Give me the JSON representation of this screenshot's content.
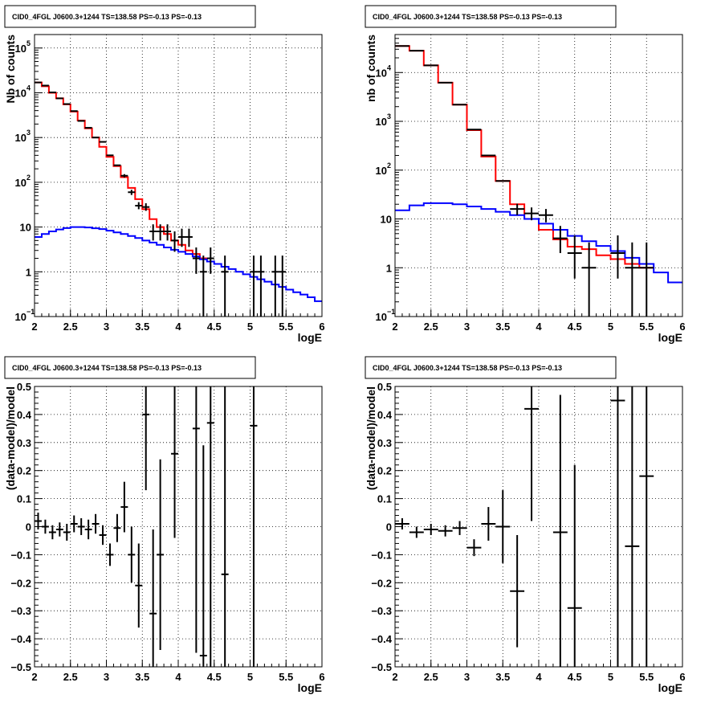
{
  "colors": {
    "data": "#000000",
    "model_total": "#ff0000",
    "model_component": "#0000ff",
    "grid": "#000000"
  },
  "chart_data": [
    {
      "type": "step",
      "title": "CID0_4FGL J0600.3+1244 TS=138.58 PS=-0.13 PS=-0.13",
      "xlabel": "logE",
      "ylabel": "Nb of counts",
      "xlim": [
        2,
        6
      ],
      "ylim": [
        0.1,
        200000
      ],
      "yscale": "log",
      "grid": true,
      "xticks": [
        "2",
        "2.5",
        "3",
        "3.5",
        "4",
        "4.5",
        "5",
        "5.5",
        "6"
      ],
      "yticks": [
        {
          "v": 0.1,
          "base": "10",
          "exp": "−1"
        },
        {
          "v": 1,
          "base": "1",
          "exp": ""
        },
        {
          "v": 10,
          "base": "10",
          "exp": ""
        },
        {
          "v": 100,
          "base": "10",
          "exp": "2"
        },
        {
          "v": 1000,
          "base": "10",
          "exp": "3"
        },
        {
          "v": 10000,
          "base": "10",
          "exp": "4"
        },
        {
          "v": 100000,
          "base": "10",
          "exp": "5"
        }
      ],
      "series": [
        {
          "role": "model_total",
          "x_edges": [
            2.0,
            2.1,
            2.2,
            2.3,
            2.4,
            2.5,
            2.6,
            2.7,
            2.8,
            2.9,
            3.0,
            3.1,
            3.2,
            3.3,
            3.4,
            3.5,
            3.6,
            3.7,
            3.8,
            3.9,
            4.0,
            4.1,
            4.2,
            4.3,
            4.4
          ],
          "values": [
            17000,
            14000,
            10000,
            7500,
            5500,
            3800,
            2400,
            1600,
            1000,
            620,
            370,
            230,
            130,
            75,
            42,
            25,
            15,
            10,
            7,
            5,
            4,
            3,
            2.5,
            2
          ]
        },
        {
          "role": "model_component",
          "x_edges": [
            2.0,
            2.1,
            2.2,
            2.3,
            2.4,
            2.5,
            2.6,
            2.7,
            2.8,
            2.9,
            3.0,
            3.1,
            3.2,
            3.3,
            3.4,
            3.5,
            3.6,
            3.7,
            3.8,
            3.9,
            4.0,
            4.1,
            4.2,
            4.3,
            4.4,
            4.5,
            4.6,
            4.7,
            4.8,
            4.9,
            5.0,
            5.1,
            5.2,
            5.3,
            5.4,
            5.5,
            5.6,
            5.7,
            5.8,
            5.9,
            6.0
          ],
          "values": [
            6,
            7,
            8,
            8.8,
            9.5,
            10,
            10,
            9.8,
            9.4,
            9,
            8.3,
            7.6,
            7,
            6.3,
            5.7,
            5,
            4.5,
            4,
            3.5,
            3.1,
            2.8,
            2.5,
            2.2,
            1.9,
            1.7,
            1.5,
            1.3,
            1.15,
            1.0,
            0.88,
            0.77,
            0.68,
            0.6,
            0.52,
            0.46,
            0.4,
            0.35,
            0.31,
            0.27,
            0.22
          ]
        },
        {
          "role": "data",
          "points": [
            [
              2.05,
              17000
            ],
            [
              2.15,
              14500
            ],
            [
              2.25,
              10200
            ],
            [
              2.35,
              7500
            ],
            [
              2.45,
              5600
            ],
            [
              2.55,
              3900
            ],
            [
              2.65,
              2350
            ],
            [
              2.75,
              1650
            ],
            [
              2.85,
              1000
            ],
            [
              2.95,
              800
            ],
            [
              3.05,
              400
            ],
            [
              3.15,
              240
            ],
            [
              3.25,
              140
            ],
            [
              3.35,
              60
            ],
            [
              3.45,
              30
            ],
            [
              3.55,
              28
            ],
            [
              3.65,
              8
            ],
            [
              3.75,
              8
            ],
            [
              3.85,
              8
            ],
            [
              3.95,
              5
            ],
            [
              4.05,
              6
            ],
            [
              4.15,
              6
            ],
            [
              4.25,
              2
            ],
            [
              4.35,
              1
            ],
            [
              4.45,
              2
            ],
            [
              4.65,
              1
            ],
            [
              5.05,
              1
            ],
            [
              5.15,
              1
            ],
            [
              5.35,
              1
            ],
            [
              5.45,
              1
            ]
          ],
          "yerr_lo": [
            0,
            0,
            0,
            0,
            0,
            0,
            0,
            0,
            0,
            0,
            0,
            0,
            12,
            8,
            5,
            5,
            3,
            3,
            3,
            2.2,
            2.4,
            2.4,
            1.1,
            1,
            1.1,
            1,
            1,
            1,
            1,
            1
          ],
          "yerr_hi": [
            0,
            0,
            0,
            0,
            0,
            0,
            0,
            0,
            0,
            0,
            0,
            0,
            12,
            8,
            6,
            6,
            3.5,
            3.5,
            3.5,
            3,
            3.2,
            3.2,
            1.5,
            1.3,
            1.5,
            1.3,
            1.3,
            1.3,
            1.3,
            1.3
          ],
          "xerr": 0.05
        }
      ]
    },
    {
      "type": "step",
      "title": "CID0_4FGL J0600.3+1244 TS=138.58 PS=-0.13 PS=-0.13",
      "xlabel": "logE",
      "ylabel": "nb of counts",
      "xlim": [
        2,
        6
      ],
      "ylim": [
        0.1,
        60000
      ],
      "yscale": "log",
      "grid": true,
      "xticks": [
        "2",
        "2.5",
        "3",
        "3.5",
        "4",
        "4.5",
        "5",
        "5.5",
        "6"
      ],
      "yticks": [
        {
          "v": 0.1,
          "base": "10",
          "exp": "−1"
        },
        {
          "v": 1,
          "base": "1",
          "exp": ""
        },
        {
          "v": 10,
          "base": "10",
          "exp": ""
        },
        {
          "v": 100,
          "base": "10",
          "exp": "2"
        },
        {
          "v": 1000,
          "base": "10",
          "exp": "3"
        },
        {
          "v": 10000,
          "base": "10",
          "exp": "4"
        }
      ],
      "series": [
        {
          "role": "model_total",
          "x_edges": [
            2.0,
            2.2,
            2.4,
            2.6,
            2.8,
            3.0,
            3.2,
            3.4,
            3.6,
            3.8,
            4.0,
            4.2,
            4.4,
            4.6,
            4.8,
            5.0,
            5.2,
            5.4,
            5.6
          ],
          "values": [
            35000,
            28000,
            14000,
            6200,
            2200,
            660,
            190,
            60,
            20,
            10,
            6,
            3.8,
            2.7,
            2.4,
            1.8,
            1.5,
            1.2,
            1.0
          ]
        },
        {
          "role": "model_component",
          "x_edges": [
            2.0,
            2.2,
            2.4,
            2.6,
            2.8,
            3.0,
            3.2,
            3.4,
            3.6,
            3.8,
            4.0,
            4.2,
            4.4,
            4.6,
            4.8,
            5.0,
            5.2,
            5.4,
            5.6,
            5.8,
            6.0
          ],
          "values": [
            15,
            19,
            21,
            21,
            20,
            18,
            16,
            14,
            12,
            10,
            8,
            6,
            4.5,
            3.5,
            2.8,
            2.2,
            1.6,
            1.2,
            0.8,
            0.5
          ]
        },
        {
          "role": "data",
          "points": [
            [
              2.1,
              35000
            ],
            [
              2.3,
              28000
            ],
            [
              2.5,
              14000
            ],
            [
              2.7,
              6200
            ],
            [
              2.9,
              2200
            ],
            [
              3.1,
              680
            ],
            [
              3.3,
              200
            ],
            [
              3.5,
              60
            ],
            [
              3.7,
              16
            ],
            [
              3.9,
              13
            ],
            [
              4.1,
              12
            ],
            [
              4.3,
              4
            ],
            [
              4.5,
              2
            ],
            [
              4.7,
              1
            ],
            [
              5.1,
              2
            ],
            [
              5.3,
              1
            ],
            [
              5.5,
              1
            ]
          ],
          "yerr_lo": [
            0,
            0,
            0,
            0,
            0,
            0,
            0,
            0,
            4,
            3.6,
            3.5,
            2,
            1.4,
            1,
            1.4,
            1,
            1
          ],
          "yerr_hi": [
            0,
            0,
            0,
            0,
            0,
            0,
            0,
            0,
            4.5,
            4.2,
            4,
            3.2,
            2.6,
            2.3,
            2.6,
            2.3,
            2.3
          ],
          "xerr": 0.1
        }
      ]
    },
    {
      "type": "scatter",
      "title": "CID0_4FGL J0600.3+1244 TS=138.58 PS=-0.13 PS=-0.13",
      "xlabel": "logE",
      "ylabel": "(data-model)/model",
      "xlim": [
        2,
        6
      ],
      "ylim": [
        -0.5,
        0.5
      ],
      "yscale": "linear",
      "grid": true,
      "xticks": [
        "2",
        "2.5",
        "3",
        "3.5",
        "4",
        "4.5",
        "5",
        "5.5",
        "6"
      ],
      "yticks": [
        "−0.5",
        "−0.4",
        "−0.3",
        "−0.2",
        "−0.1",
        "0",
        "0.1",
        "0.2",
        "0.3",
        "0.4",
        "0.5"
      ],
      "series": [
        {
          "role": "data",
          "xerr": 0.05,
          "points": [
            [
              2.05,
              0.02,
              0.03
            ],
            [
              2.15,
              0.0,
              0.025
            ],
            [
              2.25,
              -0.02,
              0.025
            ],
            [
              2.35,
              -0.01,
              0.025
            ],
            [
              2.45,
              -0.02,
              0.03
            ],
            [
              2.55,
              0.01,
              0.03
            ],
            [
              2.65,
              0.0,
              0.03
            ],
            [
              2.75,
              -0.01,
              0.035
            ],
            [
              2.85,
              0.01,
              0.035
            ],
            [
              2.95,
              -0.03,
              0.035
            ],
            [
              3.05,
              -0.1,
              0.04
            ],
            [
              3.15,
              -0.005,
              0.05
            ],
            [
              3.25,
              0.07,
              0.09
            ],
            [
              3.35,
              -0.1,
              0.1
            ],
            [
              3.45,
              -0.21,
              0.15
            ],
            [
              3.55,
              0.4,
              0.27
            ],
            [
              3.65,
              -0.31,
              0.3
            ],
            [
              3.75,
              -0.1,
              0.34
            ],
            [
              3.95,
              0.26,
              0.3
            ],
            [
              4.25,
              0.35,
              0.8
            ],
            [
              4.35,
              -0.46,
              0.75
            ],
            [
              4.45,
              0.37,
              0.9
            ],
            [
              4.65,
              -0.17,
              1.0
            ],
            [
              5.05,
              0.36,
              1.0
            ]
          ]
        }
      ]
    },
    {
      "type": "scatter",
      "title": "CID0_4FGL J0600.3+1244 TS=138.58 PS=-0.13 PS=-0.13",
      "xlabel": "logE",
      "ylabel": "(data-model)/model",
      "xlim": [
        2,
        6
      ],
      "ylim": [
        -0.5,
        0.5
      ],
      "yscale": "linear",
      "grid": true,
      "xticks": [
        "2",
        "2.5",
        "3",
        "3.5",
        "4",
        "4.5",
        "5",
        "5.5",
        "6"
      ],
      "yticks": [
        "−0.5",
        "−0.4",
        "−0.3",
        "−0.2",
        "−0.1",
        "0",
        "0.1",
        "0.2",
        "0.3",
        "0.4",
        "0.5"
      ],
      "series": [
        {
          "role": "data",
          "xerr": 0.1,
          "points": [
            [
              2.1,
              0.01,
              0.02
            ],
            [
              2.3,
              -0.02,
              0.02
            ],
            [
              2.5,
              -0.01,
              0.02
            ],
            [
              2.7,
              -0.015,
              0.02
            ],
            [
              2.9,
              -0.005,
              0.025
            ],
            [
              3.1,
              -0.075,
              0.03
            ],
            [
              3.3,
              0.01,
              0.06
            ],
            [
              3.5,
              0.0,
              0.13
            ],
            [
              3.7,
              -0.23,
              0.2
            ],
            [
              3.9,
              0.42,
              0.4
            ],
            [
              4.3,
              -0.02,
              0.49
            ],
            [
              4.5,
              -0.29,
              0.51
            ],
            [
              5.1,
              0.45,
              0.95
            ],
            [
              5.3,
              -0.07,
              1.0
            ],
            [
              5.5,
              0.18,
              1.0
            ]
          ]
        }
      ]
    }
  ]
}
